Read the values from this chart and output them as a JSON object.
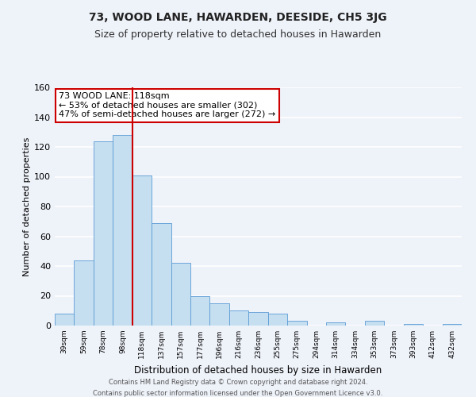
{
  "title": "73, WOOD LANE, HAWARDEN, DEESIDE, CH5 3JG",
  "subtitle": "Size of property relative to detached houses in Hawarden",
  "xlabel": "Distribution of detached houses by size in Hawarden",
  "ylabel": "Number of detached properties",
  "bin_labels": [
    "39sqm",
    "59sqm",
    "78sqm",
    "98sqm",
    "118sqm",
    "137sqm",
    "157sqm",
    "177sqm",
    "196sqm",
    "216sqm",
    "236sqm",
    "255sqm",
    "275sqm",
    "294sqm",
    "314sqm",
    "334sqm",
    "353sqm",
    "373sqm",
    "393sqm",
    "412sqm",
    "432sqm"
  ],
  "bar_heights": [
    8,
    44,
    124,
    128,
    101,
    69,
    42,
    20,
    15,
    10,
    9,
    8,
    3,
    0,
    2,
    0,
    3,
    0,
    1,
    0,
    1
  ],
  "highlight_index": 4,
  "bar_color": "#c5dff0",
  "bar_edge_color": "#5b9bd5",
  "highlight_line_color": "#cc0000",
  "annotation_text": "73 WOOD LANE: 118sqm\n← 53% of detached houses are smaller (302)\n47% of semi-detached houses are larger (272) →",
  "ylim": [
    0,
    160
  ],
  "yticks": [
    0,
    20,
    40,
    60,
    80,
    100,
    120,
    140,
    160
  ],
  "footer1": "Contains HM Land Registry data © Crown copyright and database right 2024.",
  "footer2": "Contains public sector information licensed under the Open Government Licence v3.0.",
  "bg_color": "#eef2f9",
  "grid_color": "#ffffff",
  "title_fontsize": 10,
  "subtitle_fontsize": 9
}
